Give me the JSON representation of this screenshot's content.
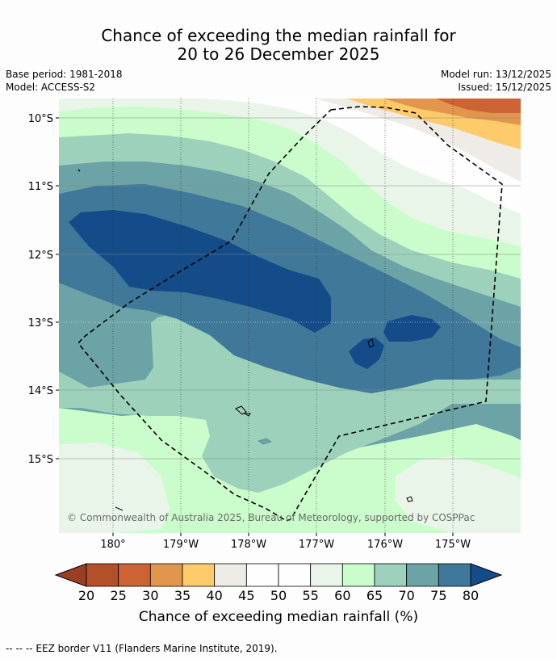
{
  "title": {
    "line1": "Chance of exceeding the median rainfall for",
    "line2": "20 to 26 December 2025"
  },
  "meta_left": {
    "base_period": "Base period: 1981-2018",
    "model": "Model: ACCESS-S2"
  },
  "meta_right": {
    "model_run": "Model run: 13/12/2025",
    "issued": "Issued: 15/12/2025"
  },
  "map": {
    "lat_labels": [
      "10°S",
      "11°S",
      "12°S",
      "13°S",
      "14°S",
      "15°S"
    ],
    "lon_labels": [
      "180°",
      "179°W",
      "178°W",
      "177°W",
      "176°W",
      "175°W"
    ],
    "copyright": "© Commonwealth of Australia 2025, Bureau of Meteorology, supported by COSPPac",
    "colors": {
      "c80": "#134c89",
      "c75": "#3f7899",
      "c70": "#6ba3a6",
      "c65": "#9dd1bb",
      "c60": "#cbfccb",
      "c55": "#eaf5ea",
      "c50": "#fefefe",
      "c45": "#efebe6",
      "c40": "#fdcb6a",
      "c35": "#e2954d",
      "c30": "#cd6334",
      "c25": "#b3502a"
    }
  },
  "colorbar": {
    "ticks": [
      "20",
      "25",
      "30",
      "35",
      "40",
      "45",
      "50",
      "55",
      "60",
      "65",
      "70",
      "75",
      "80"
    ],
    "colors": [
      "#b3502a",
      "#cd6334",
      "#e2954d",
      "#fdcb6a",
      "#efebe6",
      "#fefefe",
      "#fefefe",
      "#eaf5ea",
      "#cbfccb",
      "#9dd1bb",
      "#6ba3a6",
      "#3f7899"
    ],
    "under_color": "#9a3f25",
    "over_color": "#134c89",
    "label": "Chance of exceeding median rainfall (%)"
  },
  "footer": "--  --  -- EEZ border V11 (Flanders Marine Institute, 2019)."
}
